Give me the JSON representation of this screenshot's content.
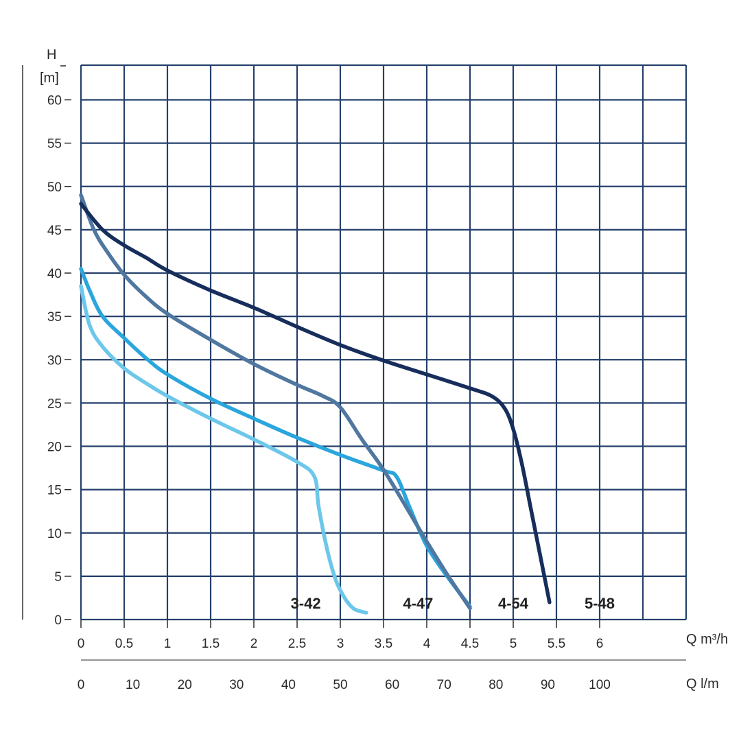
{
  "chart_data": {
    "type": "line",
    "ylabel_top": "H",
    "ylabel_unit": "[m]",
    "xlabel_primary": "Q m³/h",
    "xlabel_secondary": "Q l/m",
    "ylim": [
      0,
      64
    ],
    "xlim": [
      0,
      7
    ],
    "y_ticks": [
      0,
      5,
      10,
      15,
      20,
      25,
      30,
      35,
      40,
      45,
      50,
      55,
      60
    ],
    "y_tick_labels": [
      "0",
      "5",
      "10",
      "15",
      "20",
      "25",
      "30",
      "35",
      "40",
      "45",
      "50",
      "55",
      "60"
    ],
    "x_ticks": [
      0,
      0.5,
      1,
      1.5,
      2,
      2.5,
      3,
      3.5,
      4,
      4.5,
      5,
      5.5,
      6
    ],
    "x_tick_labels": [
      "0",
      "0.5",
      "1",
      "1.5",
      "2",
      "2.5",
      "3",
      "3.5",
      "4",
      "4.5",
      "5",
      "5.5",
      "6"
    ],
    "x2_tick_labels": [
      "0",
      "10",
      "20",
      "30",
      "40",
      "50",
      "60",
      "70",
      "80",
      "90",
      "100"
    ],
    "grid": true,
    "series": [
      {
        "name": "3-42",
        "color": "#6cc7ea",
        "label_x": 2.6,
        "points": [
          [
            0,
            38.5
          ],
          [
            0.1,
            34
          ],
          [
            0.25,
            31.5
          ],
          [
            0.5,
            29
          ],
          [
            0.75,
            27.3
          ],
          [
            1,
            25.8
          ],
          [
            1.5,
            23.2
          ],
          [
            2,
            20.8
          ],
          [
            2.5,
            18.2
          ],
          [
            2.7,
            16.5
          ],
          [
            2.75,
            13
          ],
          [
            2.85,
            8
          ],
          [
            2.95,
            4.5
          ],
          [
            3.05,
            2.5
          ],
          [
            3.15,
            1.3
          ],
          [
            3.25,
            0.9
          ],
          [
            3.3,
            0.8
          ]
        ]
      },
      {
        "name": "4-47",
        "color": "#2aa6dd",
        "label_x": 3.9,
        "points": [
          [
            0,
            40.5
          ],
          [
            0.1,
            38
          ],
          [
            0.25,
            35
          ],
          [
            0.5,
            32.5
          ],
          [
            0.75,
            30.2
          ],
          [
            1,
            28.3
          ],
          [
            1.5,
            25.5
          ],
          [
            2,
            23.2
          ],
          [
            2.5,
            21
          ],
          [
            3,
            19
          ],
          [
            3.5,
            17.2
          ],
          [
            3.65,
            16.5
          ],
          [
            3.8,
            13
          ],
          [
            4,
            8.5
          ],
          [
            4.25,
            4.8
          ],
          [
            4.5,
            1.5
          ]
        ]
      },
      {
        "name": "4-54",
        "color": "#4f77a0",
        "label_x": 5.0,
        "points": [
          [
            0,
            49
          ],
          [
            0.15,
            45
          ],
          [
            0.3,
            42.5
          ],
          [
            0.5,
            39.8
          ],
          [
            0.75,
            37.3
          ],
          [
            1,
            35.3
          ],
          [
            1.5,
            32.3
          ],
          [
            2,
            29.5
          ],
          [
            2.5,
            27.1
          ],
          [
            2.8,
            25.8
          ],
          [
            3,
            24.5
          ],
          [
            3.25,
            20.8
          ],
          [
            3.5,
            17.3
          ],
          [
            3.75,
            13.2
          ],
          [
            4,
            9
          ],
          [
            4.25,
            5
          ],
          [
            4.5,
            1.3
          ]
        ]
      },
      {
        "name": "5-48",
        "color": "#172e5c",
        "label_x": 6.0,
        "points": [
          [
            0,
            48
          ],
          [
            0.25,
            45
          ],
          [
            0.5,
            43.2
          ],
          [
            0.75,
            41.8
          ],
          [
            1,
            40.3
          ],
          [
            1.5,
            38
          ],
          [
            2,
            36
          ],
          [
            2.5,
            33.8
          ],
          [
            3,
            31.7
          ],
          [
            3.5,
            29.9
          ],
          [
            4,
            28.3
          ],
          [
            4.5,
            26.7
          ],
          [
            4.75,
            25.8
          ],
          [
            4.9,
            24.4
          ],
          [
            5,
            22
          ],
          [
            5.1,
            18
          ],
          [
            5.2,
            13
          ],
          [
            5.3,
            8
          ],
          [
            5.38,
            4
          ],
          [
            5.42,
            2
          ]
        ]
      }
    ]
  }
}
